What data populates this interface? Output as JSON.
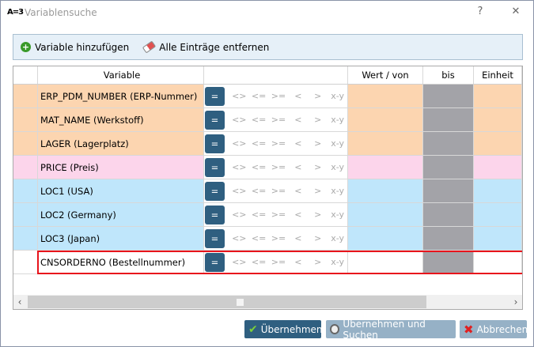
{
  "window": {
    "logo": "A=3",
    "title": "Variablensuche",
    "help": "?",
    "close": "✕"
  },
  "toolbar": {
    "add": "Variable hinzufügen",
    "clear": "Alle Einträge entfernen"
  },
  "columns": [
    "",
    "Variable",
    "",
    "Wert / von",
    "bis",
    "Einheit"
  ],
  "operators": [
    "=",
    "<>",
    "<=",
    ">=",
    "<",
    ">",
    "x-y"
  ],
  "rows": [
    {
      "variable": "ERP_PDM_NUMBER (ERP-Nummer)",
      "group": "orange",
      "wert": "",
      "bis": "",
      "einheit": ""
    },
    {
      "variable": "MAT_NAME (Werkstoff)",
      "group": "orange",
      "wert": "",
      "bis": "",
      "einheit": ""
    },
    {
      "variable": "LAGER (Lagerplatz)",
      "group": "orange",
      "wert": "",
      "bis": "",
      "einheit": ""
    },
    {
      "variable": "PRICE (Preis)",
      "group": "pink",
      "wert": "",
      "bis": "",
      "einheit": ""
    },
    {
      "variable": "LOC1 (USA)",
      "group": "blue",
      "wert": "",
      "bis": "",
      "einheit": ""
    },
    {
      "variable": "LOC2 (Germany)",
      "group": "blue",
      "wert": "",
      "bis": "",
      "einheit": ""
    },
    {
      "variable": "LOC3 (Japan)",
      "group": "blue",
      "wert": "",
      "bis": "",
      "einheit": ""
    },
    {
      "variable": "CNSORDERNO (Bestellnummer)",
      "group": "white",
      "wert": "",
      "bis": "",
      "einheit": "",
      "highlighted": true
    }
  ],
  "colors": {
    "orange": "#fcd5b0",
    "pink": "#fcd5eb",
    "blue": "#bfe6fb",
    "bis": "#a3a3a8",
    "accent": "#2f5f80",
    "highlight": "#e8141c"
  },
  "buttons": {
    "apply": "Übernehmen",
    "apply_search": "Übernehmen und Suchen",
    "cancel": "Abbrechen"
  }
}
